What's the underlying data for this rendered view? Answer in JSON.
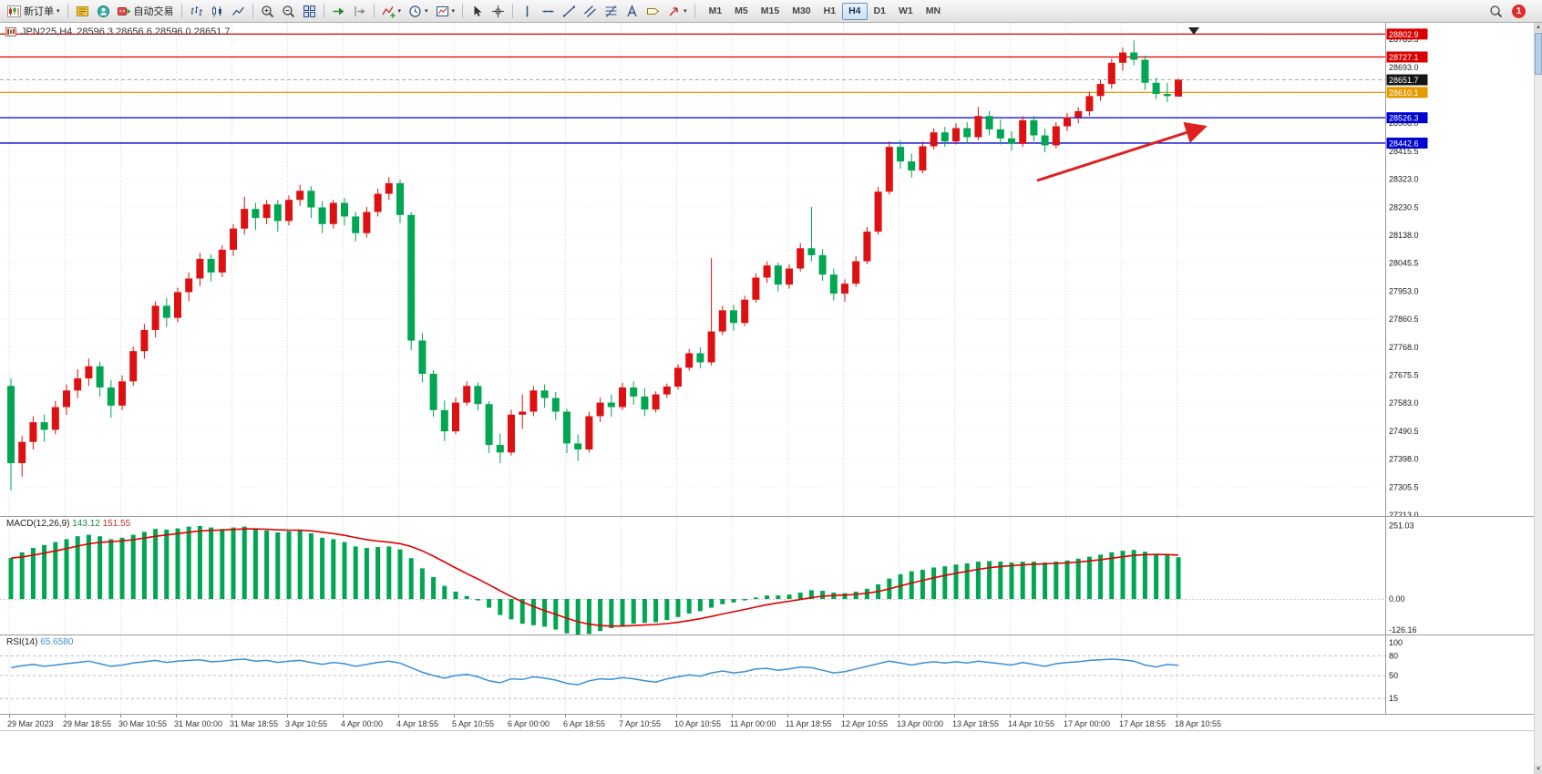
{
  "toolbar": {
    "new_order_label": "新订单",
    "auto_trading_label": "自动交易",
    "timeframes": [
      "M1",
      "M5",
      "M15",
      "M30",
      "H1",
      "H4",
      "D1",
      "W1",
      "MN"
    ],
    "active_timeframe": "H4",
    "notification_count": "1",
    "icons": {
      "new_order": "candlestick-chart-plus",
      "market_watch": "yellow-quote-list",
      "community": "person-circle",
      "auto_trading": "ea-head-green-play",
      "chart_bars": "bar-chart",
      "chart_candles": "candlestick",
      "chart_line": "line-chart",
      "zoom_in": "magnifier-plus",
      "zoom_out": "magnifier-minus",
      "tile_windows": "grid-2x2",
      "auto_scroll": "green-arrow-right",
      "chart_shift": "shift-arrow",
      "indicators": "chart-green-plus",
      "periods": "clock",
      "templates": "chart-template",
      "cursor": "pointer-arrow",
      "crosshair": "crosshair",
      "vline": "vertical-line",
      "hline": "horizontal-line",
      "trendline": "diagonal-line",
      "channel": "parallel-lines",
      "fibonacci": "fibo-retracement",
      "text": "letter-a",
      "label": "tag",
      "arrows": "arrow-object",
      "search": "magnifier",
      "notification": "red-circle-count"
    }
  },
  "colors": {
    "bull": "#dd1111",
    "bear": "#00a651",
    "macd_hist": "#00a651",
    "macd_signal": "#e00000",
    "rsi": "#3a8fd6",
    "grid": "#d8d8d8",
    "hline_red": "#d80000",
    "hline_orange": "#e59a00",
    "hline_blue": "#0000d0",
    "current_badge": "#151515",
    "arrow": "#e02020"
  },
  "chart": {
    "title_symbol": "JPN225,H4",
    "title_ohlc": "28596.3 28656.6 28596.0 28651.7",
    "current_price": 28651.7,
    "price_axis_labels": [
      "28785.5",
      "28693.0",
      "28600.5",
      "28508.0",
      "28415.5",
      "28323.0",
      "28230.5",
      "28138.0",
      "28045.5",
      "27953.0",
      "27860.5",
      "27768.0",
      "27675.5",
      "27583.0",
      "27490.5",
      "27398.0",
      "27305.5",
      "27213.0"
    ],
    "price_badges": [
      {
        "value": "28802.9",
        "price": 28802.9,
        "color": "#d80000"
      },
      {
        "value": "28727.1",
        "price": 28727.1,
        "color": "#d80000"
      },
      {
        "value": "28651.7",
        "price": 28651.7,
        "color": "#151515"
      },
      {
        "value": "28610.1",
        "price": 28610.1,
        "color": "#e59a00"
      },
      {
        "value": "28526.3",
        "price": 28526.3,
        "color": "#0000d0"
      },
      {
        "value": "28442.6",
        "price": 28442.6,
        "color": "#0000d0"
      }
    ],
    "hlines": [
      {
        "price": 28802.9,
        "color": "#d80000"
      },
      {
        "price": 28727.1,
        "color": "#d80000"
      },
      {
        "price": 28610.1,
        "color": "#e59a00"
      },
      {
        "price": 28526.3,
        "color": "#0000d0"
      },
      {
        "price": 28442.6,
        "color": "#0000d0"
      }
    ],
    "arrow": {
      "from": [
        1138,
        198
      ],
      "to": [
        1322,
        139
      ],
      "color": "#e02020"
    }
  },
  "chart_data": {
    "type": "candlestick",
    "symbol": "JPN225",
    "period": "H4",
    "price_range": [
      27213,
      28810
    ],
    "x_labels": [
      "29 Mar 2023",
      "29 Mar 18:55",
      "30 Mar 10:55",
      "31 Mar 00:00",
      "31 Mar 18:55",
      "3 Apr 10:55",
      "4 Apr 00:00",
      "4 Apr 18:55",
      "5 Apr 10:55",
      "6 Apr 00:00",
      "6 Apr 18:55",
      "7 Apr 10:55",
      "10 Apr 10:55",
      "11 Apr 00:00",
      "11 Apr 18:55",
      "12 Apr 10:55",
      "13 Apr 00:00",
      "13 Apr 18:55",
      "14 Apr 10:55",
      "17 Apr 00:00",
      "17 Apr 18:55",
      "18 Apr 10:55"
    ],
    "candles": [
      [
        27640,
        27665,
        27295,
        27385
      ],
      [
        27385,
        27475,
        27340,
        27455
      ],
      [
        27455,
        27540,
        27430,
        27520
      ],
      [
        27520,
        27545,
        27455,
        27495
      ],
      [
        27495,
        27590,
        27480,
        27570
      ],
      [
        27570,
        27645,
        27545,
        27625
      ],
      [
        27625,
        27695,
        27600,
        27665
      ],
      [
        27665,
        27730,
        27640,
        27705
      ],
      [
        27705,
        27720,
        27605,
        27635
      ],
      [
        27635,
        27660,
        27535,
        27575
      ],
      [
        27575,
        27675,
        27560,
        27655
      ],
      [
        27655,
        27770,
        27640,
        27755
      ],
      [
        27755,
        27845,
        27730,
        27825
      ],
      [
        27825,
        27920,
        27800,
        27905
      ],
      [
        27905,
        27930,
        27835,
        27865
      ],
      [
        27865,
        27965,
        27850,
        27950
      ],
      [
        27950,
        28015,
        27920,
        27995
      ],
      [
        27995,
        28080,
        27970,
        28060
      ],
      [
        28060,
        28075,
        27985,
        28015
      ],
      [
        28015,
        28105,
        28000,
        28090
      ],
      [
        28090,
        28175,
        28070,
        28160
      ],
      [
        28160,
        28265,
        28140,
        28225
      ],
      [
        28225,
        28245,
        28155,
        28195
      ],
      [
        28195,
        28255,
        28175,
        28240
      ],
      [
        28240,
        28255,
        28150,
        28185
      ],
      [
        28185,
        28270,
        28170,
        28255
      ],
      [
        28255,
        28305,
        28235,
        28285
      ],
      [
        28285,
        28300,
        28195,
        28230
      ],
      [
        28230,
        28250,
        28145,
        28175
      ],
      [
        28175,
        28255,
        28160,
        28245
      ],
      [
        28245,
        28262,
        28170,
        28200
      ],
      [
        28200,
        28215,
        28118,
        28145
      ],
      [
        28145,
        28232,
        28130,
        28215
      ],
      [
        28215,
        28292,
        28200,
        28275
      ],
      [
        28275,
        28330,
        28255,
        28310
      ],
      [
        28310,
        28322,
        28178,
        28205
      ],
      [
        28205,
        28215,
        27758,
        27790
      ],
      [
        27790,
        27815,
        27652,
        27680
      ],
      [
        27680,
        27692,
        27538,
        27560
      ],
      [
        27560,
        27592,
        27458,
        27490
      ],
      [
        27490,
        27602,
        27480,
        27585
      ],
      [
        27585,
        27655,
        27575,
        27640
      ],
      [
        27640,
        27652,
        27558,
        27580
      ],
      [
        27580,
        27590,
        27418,
        27445
      ],
      [
        27445,
        27482,
        27385,
        27420
      ],
      [
        27420,
        27562,
        27410,
        27545
      ],
      [
        27545,
        27612,
        27498,
        27555
      ],
      [
        27555,
        27640,
        27540,
        27625
      ],
      [
        27625,
        27645,
        27568,
        27600
      ],
      [
        27600,
        27620,
        27528,
        27555
      ],
      [
        27555,
        27565,
        27418,
        27450
      ],
      [
        27450,
        27480,
        27392,
        27430
      ],
      [
        27430,
        27555,
        27420,
        27540
      ],
      [
        27540,
        27602,
        27520,
        27585
      ],
      [
        27585,
        27612,
        27538,
        27570
      ],
      [
        27570,
        27650,
        27560,
        27635
      ],
      [
        27635,
        27655,
        27578,
        27605
      ],
      [
        27605,
        27632,
        27540,
        27562
      ],
      [
        27562,
        27622,
        27552,
        27612
      ],
      [
        27612,
        27648,
        27600,
        27638
      ],
      [
        27638,
        27712,
        27628,
        27700
      ],
      [
        27700,
        27762,
        27690,
        27748
      ],
      [
        27748,
        27768,
        27698,
        27718
      ],
      [
        27718,
        28062,
        27708,
        27820
      ],
      [
        27820,
        27905,
        27808,
        27890
      ],
      [
        27890,
        27908,
        27822,
        27848
      ],
      [
        27848,
        27938,
        27838,
        27925
      ],
      [
        27925,
        28012,
        27915,
        27998
      ],
      [
        27998,
        28052,
        27980,
        28038
      ],
      [
        28038,
        28048,
        27952,
        27975
      ],
      [
        27975,
        28042,
        27962,
        28028
      ],
      [
        28028,
        28112,
        28018,
        28095
      ],
      [
        28095,
        28232,
        28052,
        28072
      ],
      [
        28072,
        28092,
        27988,
        28008
      ],
      [
        28008,
        28028,
        27922,
        27945
      ],
      [
        27945,
        27992,
        27918,
        27978
      ],
      [
        27978,
        28068,
        27968,
        28052
      ],
      [
        28052,
        28165,
        28042,
        28150
      ],
      [
        28150,
        28298,
        28140,
        28282
      ],
      [
        28282,
        28448,
        28272,
        28430
      ],
      [
        28430,
        28452,
        28358,
        28382
      ],
      [
        28382,
        28408,
        28328,
        28352
      ],
      [
        28352,
        28448,
        28342,
        28432
      ],
      [
        28432,
        28492,
        28422,
        28478
      ],
      [
        28478,
        28496,
        28430,
        28448
      ],
      [
        28448,
        28508,
        28438,
        28492
      ],
      [
        28492,
        28512,
        28440,
        28462
      ],
      [
        28462,
        28562,
        28452,
        28532
      ],
      [
        28532,
        28548,
        28468,
        28488
      ],
      [
        28488,
        28520,
        28438,
        28458
      ],
      [
        28458,
        28482,
        28418,
        28440
      ],
      [
        28440,
        28532,
        28430,
        28518
      ],
      [
        28518,
        28532,
        28448,
        28468
      ],
      [
        28468,
        28490,
        28412,
        28435
      ],
      [
        28435,
        28512,
        28425,
        28498
      ],
      [
        28498,
        28542,
        28482,
        28528
      ],
      [
        28528,
        28562,
        28508,
        28548
      ],
      [
        28548,
        28612,
        28532,
        28598
      ],
      [
        28598,
        28652,
        28582,
        28638
      ],
      [
        28638,
        28722,
        28622,
        28708
      ],
      [
        28708,
        28758,
        28682,
        28742
      ],
      [
        28742,
        28782,
        28700,
        28718
      ],
      [
        28718,
        28732,
        28618,
        28642
      ],
      [
        28642,
        28658,
        28588,
        28605
      ],
      [
        28605,
        28642,
        28578,
        28598
      ],
      [
        28596.3,
        28656.6,
        28596.0,
        28651.7
      ]
    ]
  },
  "macd": {
    "label": "MACD(12,26,9)",
    "value_main": "143.12",
    "value_signal": "151.55",
    "axis": [
      "251.03",
      "0.00",
      "-126.16"
    ],
    "axis_values": [
      251.03,
      0,
      -126.16
    ],
    "histogram": [
      140,
      160,
      175,
      185,
      195,
      205,
      215,
      220,
      215,
      205,
      210,
      220,
      230,
      240,
      238,
      242,
      248,
      250,
      245,
      240,
      245,
      248,
      240,
      235,
      228,
      232,
      235,
      225,
      210,
      205,
      195,
      180,
      175,
      178,
      180,
      170,
      140,
      105,
      75,
      45,
      25,
      10,
      -5,
      -30,
      -55,
      -70,
      -85,
      -90,
      -95,
      -105,
      -118,
      -126,
      -120,
      -110,
      -100,
      -92,
      -85,
      -82,
      -80,
      -72,
      -62,
      -50,
      -42,
      -30,
      -18,
      -12,
      -5,
      5,
      12,
      12,
      15,
      22,
      30,
      28,
      22,
      20,
      25,
      35,
      50,
      70,
      85,
      95,
      100,
      108,
      112,
      118,
      122,
      128,
      130,
      128,
      125,
      128,
      128,
      125,
      128,
      132,
      138,
      145,
      152,
      160,
      165,
      168,
      162,
      155,
      150,
      143.12
    ]
  },
  "rsi": {
    "label": "RSI(14)",
    "value": "65.6580",
    "axis_labels": [
      "100",
      "80",
      "50",
      "15"
    ],
    "levels": [
      80,
      50,
      15
    ],
    "values": [
      62,
      65,
      67,
      64,
      66,
      68,
      70,
      72,
      68,
      64,
      66,
      69,
      71,
      73,
      70,
      72,
      73,
      74,
      71,
      72,
      74,
      75,
      72,
      73,
      70,
      72,
      73,
      70,
      67,
      70,
      68,
      64,
      67,
      70,
      72,
      69,
      62,
      55,
      50,
      46,
      50,
      52,
      48,
      42,
      39,
      45,
      44,
      48,
      46,
      43,
      38,
      36,
      42,
      45,
      44,
      47,
      45,
      42,
      40,
      45,
      48,
      51,
      49,
      54,
      57,
      54,
      56,
      60,
      61,
      58,
      60,
      63,
      62,
      58,
      54,
      56,
      60,
      64,
      68,
      72,
      69,
      66,
      69,
      71,
      69,
      71,
      69,
      72,
      70,
      68,
      66,
      70,
      67,
      64,
      68,
      70,
      71,
      73,
      74,
      75,
      74,
      72,
      66,
      63,
      67,
      65.66
    ]
  }
}
